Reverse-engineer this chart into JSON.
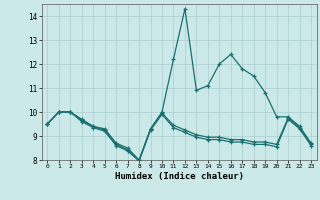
{
  "xlabel": "Humidex (Indice chaleur)",
  "xlim": [
    0,
    23
  ],
  "ylim": [
    8,
    14.5
  ],
  "yticks": [
    8,
    9,
    10,
    11,
    12,
    13,
    14
  ],
  "xticks": [
    0,
    1,
    2,
    3,
    4,
    5,
    6,
    7,
    8,
    9,
    10,
    11,
    12,
    13,
    14,
    15,
    16,
    17,
    18,
    19,
    20,
    21,
    22,
    23
  ],
  "background_color": "#cce9ea",
  "grid_color": "#aacccc",
  "line_color": "#1a7070",
  "line1": [
    9.5,
    10.0,
    10.0,
    9.7,
    9.4,
    9.3,
    8.7,
    8.5,
    8.0,
    9.3,
    10.0,
    12.2,
    14.3,
    10.9,
    11.1,
    12.0,
    12.4,
    11.8,
    11.5,
    10.8,
    9.8,
    9.8,
    9.4,
    8.7
  ],
  "line2": [
    9.5,
    10.0,
    10.0,
    9.65,
    9.4,
    9.25,
    8.65,
    8.42,
    7.98,
    9.28,
    9.95,
    9.45,
    9.25,
    9.05,
    8.95,
    8.95,
    8.85,
    8.85,
    8.75,
    8.75,
    8.65,
    9.75,
    9.35,
    8.65
  ],
  "line3": [
    9.5,
    10.0,
    10.0,
    9.6,
    9.35,
    9.2,
    8.6,
    8.38,
    7.96,
    9.25,
    9.9,
    9.35,
    9.15,
    8.95,
    8.85,
    8.85,
    8.75,
    8.75,
    8.65,
    8.65,
    8.55,
    9.7,
    9.3,
    8.6
  ]
}
